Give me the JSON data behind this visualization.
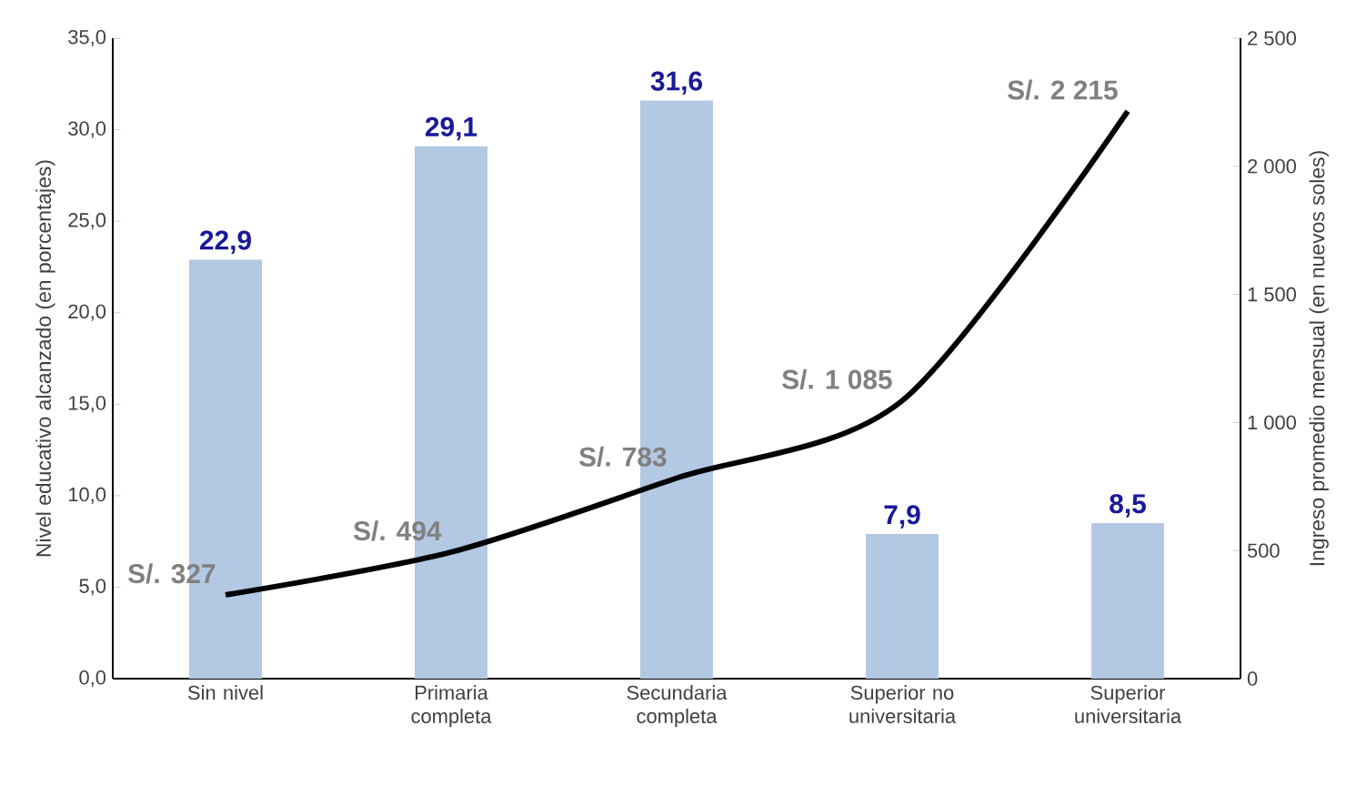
{
  "chart_data": {
    "type": "bar",
    "ylabel": "Nivel educativo alcanzado (en porcentajes)",
    "y2label": "Ingreso promedio mensual (en nuevos soles)",
    "categories": [
      "Sin nivel",
      "Primaria completa",
      "Secundaria completa",
      "Superior no universitaria",
      "Superior universitaria"
    ],
    "series": [
      {
        "color": "#b3c9e3",
        "values": [
          22.9,
          29.1,
          31.6,
          7.9,
          8.5
        ],
        "value_labels": [
          "22,9",
          "29,1",
          "31,6",
          "7,9",
          "8,5"
        ]
      },
      {
        "type": "line",
        "axis": "y2",
        "color": "#000000",
        "values": [
          327,
          494,
          783,
          1085,
          2215
        ],
        "value_labels": [
          "S/. 327",
          "S/. 494",
          "S/. 783",
          "S/. 1 085",
          "S/. 2 215"
        ]
      }
    ],
    "ylim": [
      0,
      35
    ],
    "yticks": [
      {
        "value": 0,
        "label": "0,0"
      },
      {
        "value": 5,
        "label": "5,0"
      },
      {
        "value": 10,
        "label": "10,0"
      },
      {
        "value": 15,
        "label": "15,0"
      },
      {
        "value": 20,
        "label": "20,0"
      },
      {
        "value": 25,
        "label": "25,0"
      },
      {
        "value": 30,
        "label": "30,0"
      },
      {
        "value": 35,
        "label": "35,0"
      }
    ],
    "y2lim": [
      0,
      2500
    ],
    "y2ticks": [
      0,
      500,
      {
        "value": 1000,
        "label": "1 000"
      },
      {
        "value": 1500,
        "label": "1 500"
      },
      {
        "value": 2000,
        "label": "2 000"
      },
      {
        "value": 2500,
        "label": "2 500"
      }
    ]
  }
}
